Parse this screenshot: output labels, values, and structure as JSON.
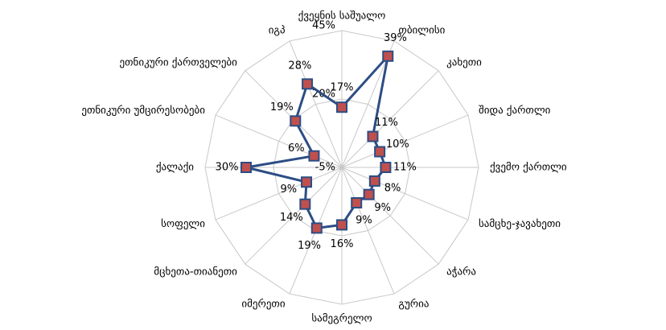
{
  "chart_data": {
    "type": "radar",
    "categories": [
      "ქვეყნის საშუალო",
      "თბილისი",
      "კახეთი",
      "შიდა ქართლი",
      "ქვემო ქართლი",
      "სამცხე-ჯავახეთი",
      "აჭარა",
      "გურია",
      "სამეგრელო",
      "იმერეთი",
      "მცხეთა-თიანეთი",
      "სოფელი",
      "ქალაქი",
      "ეთნიკური უმცირესობები",
      "ეთნიკური ქართველები",
      "იგპ"
    ],
    "values": [
      17,
      39,
      11,
      10,
      11,
      8,
      9,
      9,
      16,
      19,
      14,
      9,
      30,
      6,
      19,
      28
    ],
    "value_labels": [
      "17%",
      "39%",
      "11%",
      "10%",
      "11%",
      "8%",
      "9%",
      "9%",
      "16%",
      "19%",
      "14%",
      "9%",
      "30%",
      "6%",
      "19%",
      "28%"
    ],
    "color": "#2c4d85",
    "marker_color": "#c0504d",
    "ylim": [
      -5,
      45
    ],
    "yticks": [
      {
        "value": -5,
        "label": "-5%"
      },
      {
        "value": 20,
        "label": "20%"
      },
      {
        "value": 45,
        "label": "45%"
      }
    ],
    "grid": true
  }
}
